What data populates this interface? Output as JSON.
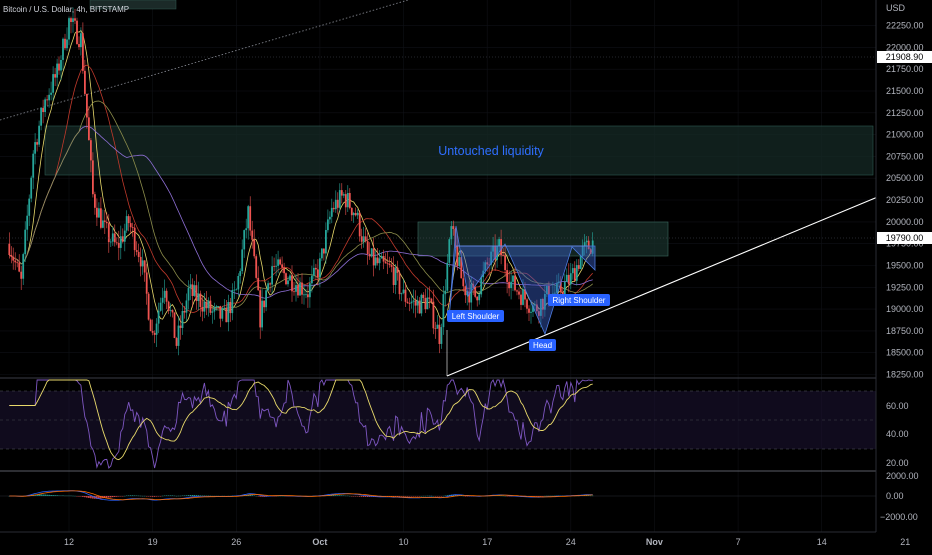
{
  "window": {
    "title": "Bitcoin / U.S. Dollar, 4h, BITSTAMP",
    "currency": "USD"
  },
  "colors": {
    "background": "#000000",
    "candle_up": "#26a69a",
    "candle_down": "#ef5350",
    "grid": "#151820",
    "accent_blue": "#2962ff",
    "rsi_line": "#7e57c2",
    "rsi_ma": "#e8d96b",
    "ma_yellow": "#e8d96b",
    "ma_red": "#c0392b",
    "ma_purple": "#8e6fd6",
    "ma_olive": "#8c8d4b",
    "trendline": "#ffffff",
    "zone_fill": "#1e3a34",
    "pattern_fill": "#3c5bb8"
  },
  "price_axis": {
    "labels": [
      "22250.00",
      "22000.00",
      "21750.00",
      "21500.00",
      "21250.00",
      "21000.00",
      "20750.00",
      "20500.00",
      "20250.00",
      "20000.00",
      "19750.00",
      "19500.00",
      "19250.00",
      "19000.00",
      "18750.00",
      "18500.00",
      "18250.00"
    ],
    "reference_price": "21908.90",
    "current_price": "19790.00"
  },
  "time_axis": {
    "labels": [
      "12",
      "19",
      "26",
      "Oct",
      "10",
      "17",
      "24",
      "Nov",
      "7",
      "14",
      "21"
    ]
  },
  "annotations": {
    "zone_label": "Untouched liquidity",
    "left_shoulder": "Left Shoulder",
    "head": "Head",
    "right_shoulder": "Right Shoulder"
  },
  "rsi_axis": {
    "labels": [
      "60.00",
      "40.00",
      "20.00"
    ]
  },
  "macd_axis": {
    "labels": [
      "2000.00",
      "0.00",
      "−2000.00"
    ]
  },
  "chart_data": {
    "type": "candlestick",
    "title": "Bitcoin / U.S. Dollar, 4h, BITSTAMP",
    "y_range": [
      18100,
      22500
    ],
    "x_range": [
      "2022-09-07",
      "2022-11-23"
    ],
    "x_tick_labels": [
      "12",
      "19",
      "26",
      "Oct",
      "10",
      "17",
      "24",
      "Nov",
      "7",
      "14",
      "21"
    ],
    "price_path": [
      {
        "date": "2022-09-07",
        "close": 19750
      },
      {
        "date": "2022-09-08",
        "close": 19300
      },
      {
        "date": "2022-09-09",
        "close": 20800
      },
      {
        "date": "2022-09-10",
        "close": 21400
      },
      {
        "date": "2022-09-11",
        "close": 21700
      },
      {
        "date": "2022-09-12",
        "close": 22300
      },
      {
        "date": "2022-09-13",
        "close": 22100
      },
      {
        "date": "2022-09-14",
        "close": 20300
      },
      {
        "date": "2022-09-15",
        "close": 19900
      },
      {
        "date": "2022-09-16",
        "close": 19700
      },
      {
        "date": "2022-09-17",
        "close": 20000
      },
      {
        "date": "2022-09-18",
        "close": 19600
      },
      {
        "date": "2022-09-19",
        "close": 18700
      },
      {
        "date": "2022-09-20",
        "close": 19300
      },
      {
        "date": "2022-09-21",
        "close": 18600
      },
      {
        "date": "2022-09-22",
        "close": 19200
      },
      {
        "date": "2022-09-23",
        "close": 19100
      },
      {
        "date": "2022-09-24",
        "close": 18950
      },
      {
        "date": "2022-09-25",
        "close": 18900
      },
      {
        "date": "2022-09-26",
        "close": 19200
      },
      {
        "date": "2022-09-27",
        "close": 20100
      },
      {
        "date": "2022-09-28",
        "close": 18900
      },
      {
        "date": "2022-09-29",
        "close": 19500
      },
      {
        "date": "2022-09-30",
        "close": 19400
      },
      {
        "date": "2022-10-01",
        "close": 19300
      },
      {
        "date": "2022-10-02",
        "close": 19200
      },
      {
        "date": "2022-10-03",
        "close": 19500
      },
      {
        "date": "2022-10-04",
        "close": 20150
      },
      {
        "date": "2022-10-05",
        "close": 20300
      },
      {
        "date": "2022-10-06",
        "close": 20100
      },
      {
        "date": "2022-10-07",
        "close": 19600
      },
      {
        "date": "2022-10-08",
        "close": 19500
      },
      {
        "date": "2022-10-09",
        "close": 19450
      },
      {
        "date": "2022-10-10",
        "close": 19150
      },
      {
        "date": "2022-10-11",
        "close": 19050
      },
      {
        "date": "2022-10-12",
        "close": 19100
      },
      {
        "date": "2022-10-13",
        "close": 18700
      },
      {
        "date": "2022-10-14",
        "close": 19900
      },
      {
        "date": "2022-10-15",
        "close": 19250
      },
      {
        "date": "2022-10-16",
        "close": 19150
      },
      {
        "date": "2022-10-17",
        "close": 19500
      },
      {
        "date": "2022-10-18",
        "close": 19700
      },
      {
        "date": "2022-10-19",
        "close": 19300
      },
      {
        "date": "2022-10-20",
        "close": 19150
      },
      {
        "date": "2022-10-21",
        "close": 19000
      },
      {
        "date": "2022-10-22",
        "close": 19150
      },
      {
        "date": "2022-10-23",
        "close": 19200
      },
      {
        "date": "2022-10-24",
        "close": 19350
      },
      {
        "date": "2022-10-25",
        "close": 19650
      },
      {
        "date": "2022-10-26",
        "close": 19790
      }
    ]
  }
}
